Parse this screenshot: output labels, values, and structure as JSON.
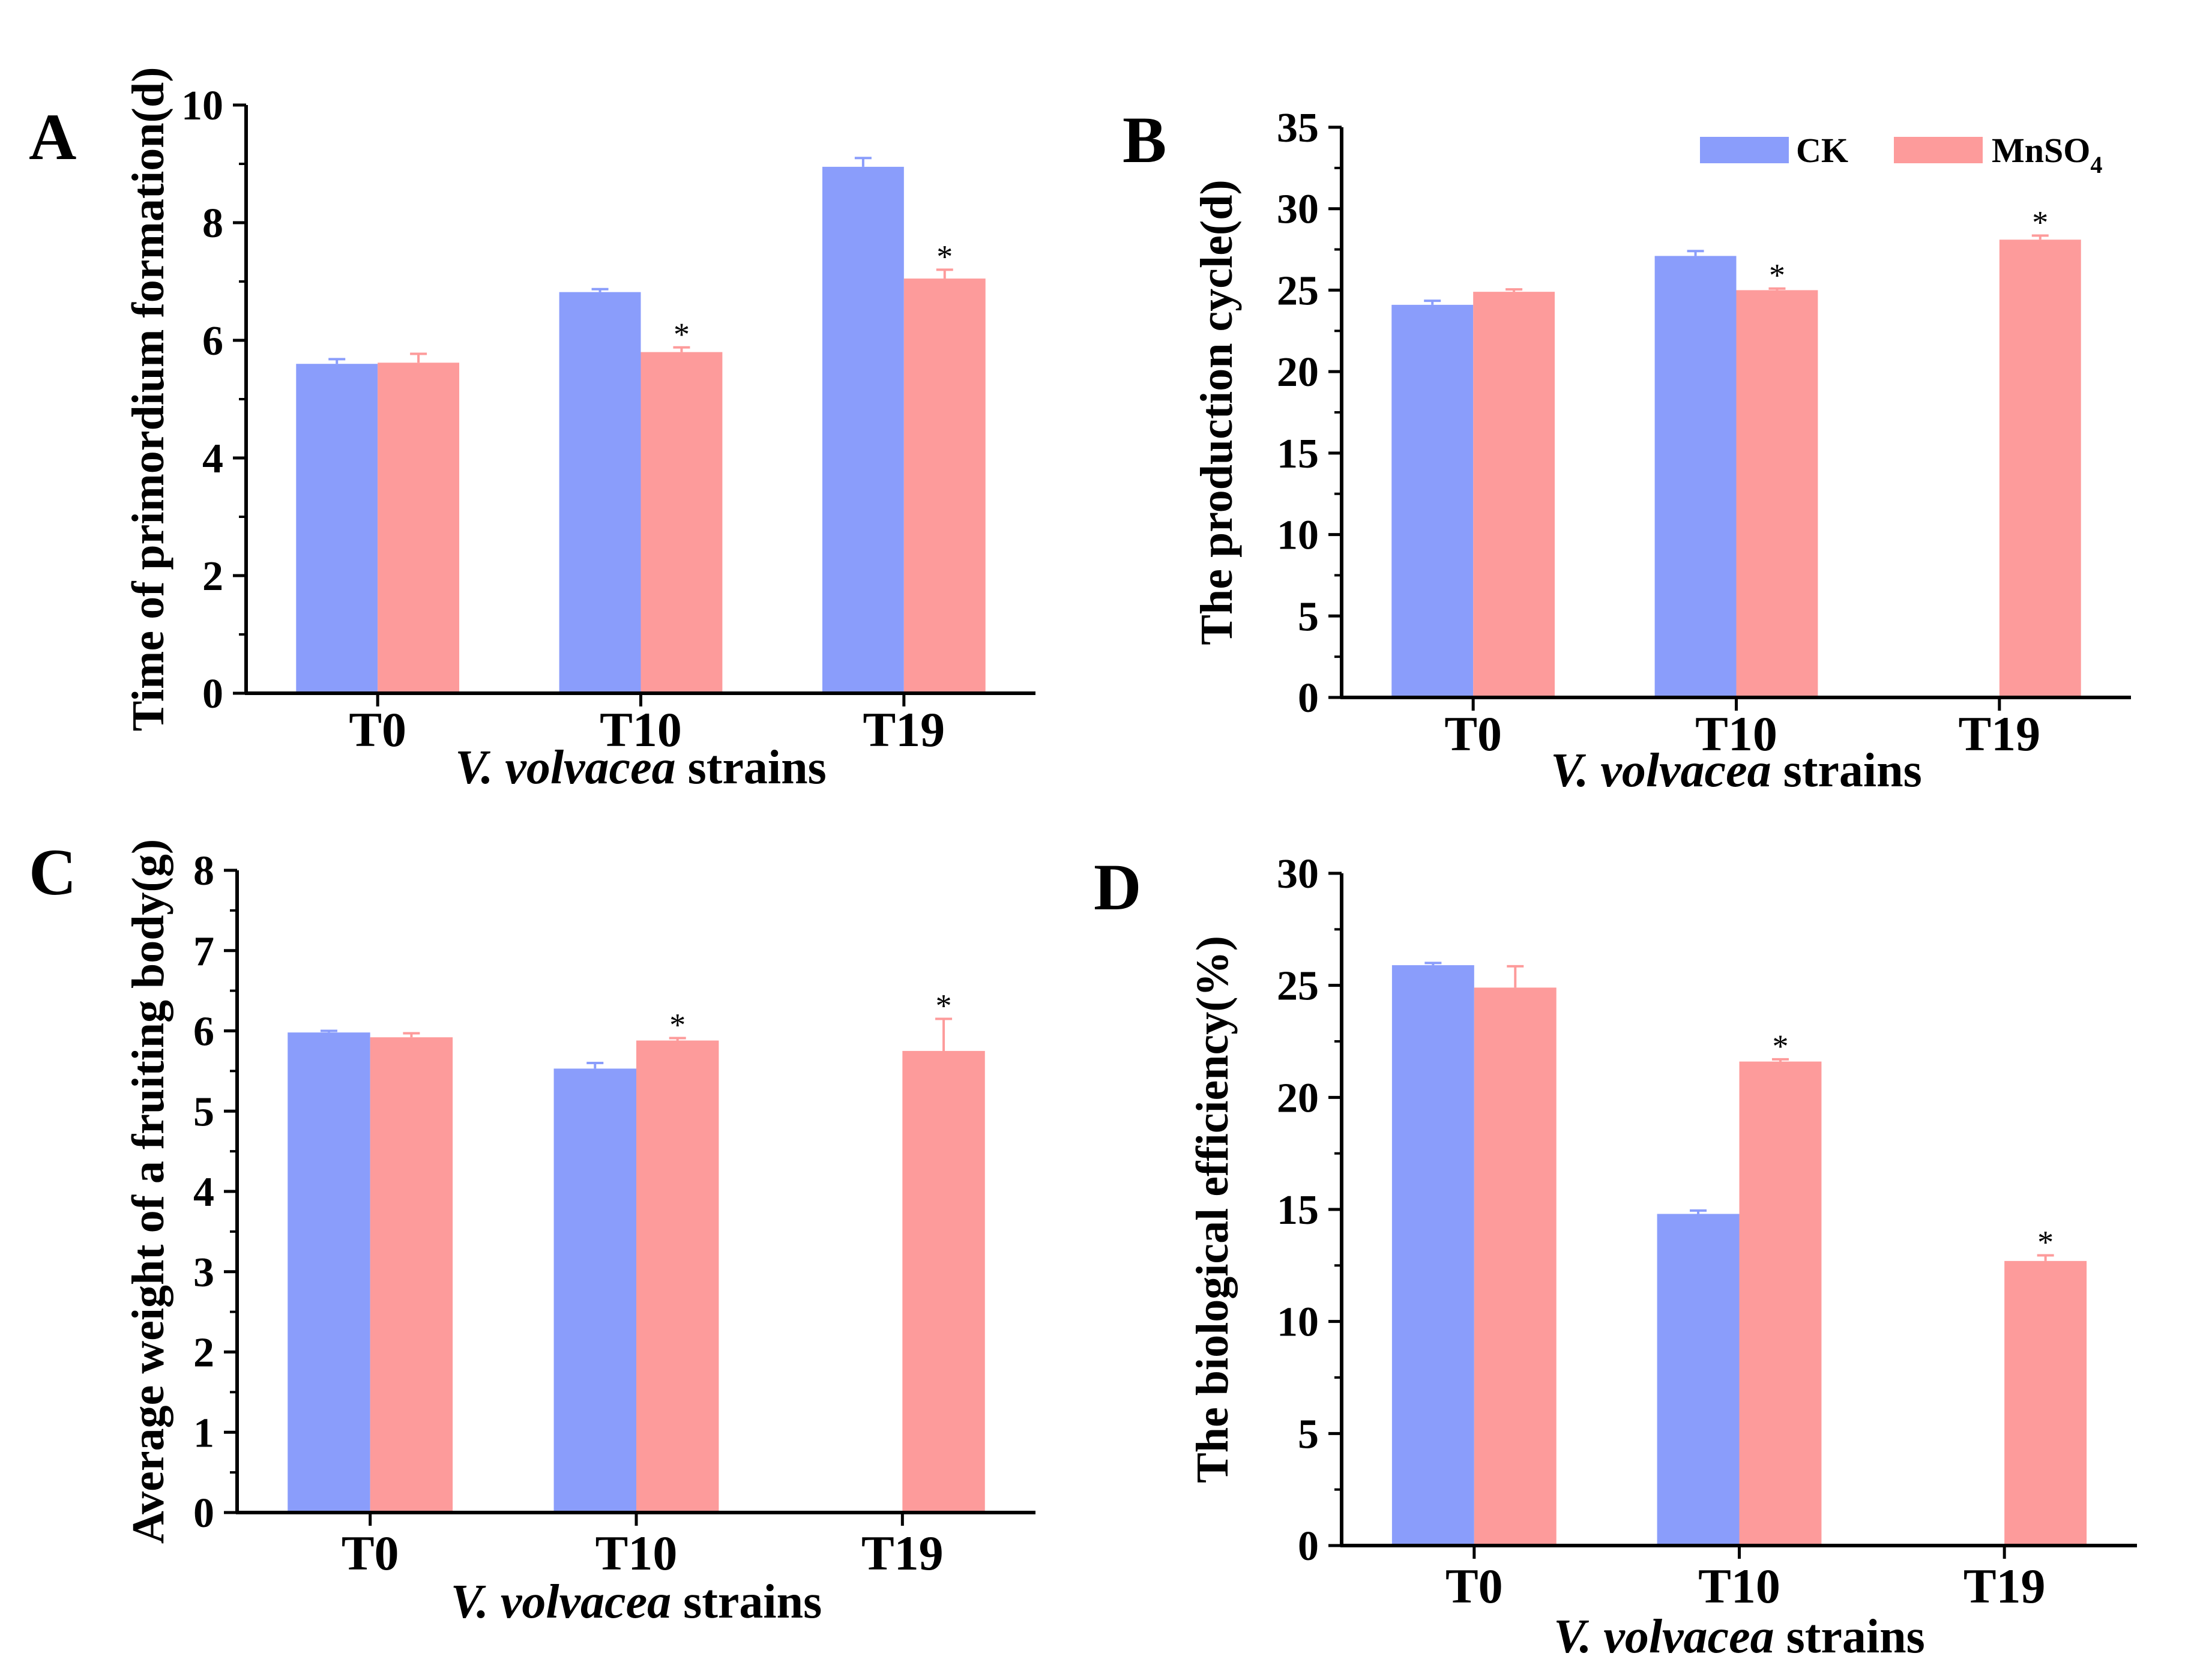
{
  "legend": {
    "items": [
      {
        "label": "CK",
        "color": "#8a9dfb"
      },
      {
        "label": "MnSO",
        "subscript": "4",
        "color": "#fd9b9b"
      }
    ]
  },
  "colors": {
    "ck": "#8a9dfb",
    "mn": "#fd9b9b",
    "axis": "#000000"
  },
  "chart_data": [
    {
      "panel": "A",
      "type": "bar",
      "ylabel": "Time of primordium formation(d)",
      "xlabel_italic": "V. volvacea",
      "xlabel_rest": " strains",
      "categories": [
        "T0",
        "T10",
        "T19"
      ],
      "ylim": [
        0,
        10
      ],
      "yticks": [
        0,
        2,
        4,
        6,
        8,
        10
      ],
      "series": [
        {
          "name": "CK",
          "values": [
            5.6,
            6.82,
            8.95
          ],
          "errors": [
            0.08,
            0.05,
            0.15
          ]
        },
        {
          "name": "MnSO4",
          "values": [
            5.62,
            5.8,
            7.05
          ],
          "errors": [
            0.15,
            0.08,
            0.15
          ]
        }
      ],
      "significance": [
        [],
        [
          "MnSO4"
        ],
        [
          "MnSO4"
        ]
      ]
    },
    {
      "panel": "B",
      "type": "bar",
      "ylabel": "The production cycle(d)",
      "xlabel_italic": "V. volvacea",
      "xlabel_rest": " strains",
      "categories": [
        "T0",
        "T10",
        "T19"
      ],
      "ylim": [
        0,
        35
      ],
      "yticks": [
        0,
        5,
        10,
        15,
        20,
        25,
        30,
        35
      ],
      "series": [
        {
          "name": "CK",
          "values": [
            24.1,
            27.1,
            null
          ],
          "errors": [
            0.25,
            0.3,
            null
          ]
        },
        {
          "name": "MnSO4",
          "values": [
            24.9,
            25.0,
            28.1
          ],
          "errors": [
            0.15,
            0.1,
            0.25
          ]
        }
      ],
      "significance": [
        [],
        [
          "MnSO4"
        ],
        [
          "MnSO4"
        ]
      ]
    },
    {
      "panel": "C",
      "type": "bar",
      "ylabel": "Average weight of a fruiting body(g)",
      "xlabel_italic": "V. volvacea",
      "xlabel_rest": " strains",
      "categories": [
        "T0",
        "T10",
        "T19"
      ],
      "ylim": [
        0,
        8
      ],
      "yticks": [
        0,
        1,
        2,
        3,
        4,
        5,
        6,
        7,
        8
      ],
      "series": [
        {
          "name": "CK",
          "values": [
            5.98,
            5.53,
            null
          ],
          "errors": [
            0.02,
            0.07,
            null
          ]
        },
        {
          "name": "MnSO4",
          "values": [
            5.92,
            5.88,
            5.75
          ],
          "errors": [
            0.05,
            0.03,
            0.4
          ]
        }
      ],
      "significance": [
        [],
        [
          "MnSO4"
        ],
        [
          "MnSO4"
        ]
      ]
    },
    {
      "panel": "D",
      "type": "bar",
      "ylabel": "The biological efficiency(%)",
      "xlabel_italic": "V. volvacea",
      "xlabel_rest": " strains",
      "categories": [
        "T0",
        "T10",
        "T19"
      ],
      "ylim": [
        0,
        30
      ],
      "yticks": [
        0,
        5,
        10,
        15,
        20,
        25,
        30
      ],
      "series": [
        {
          "name": "CK",
          "values": [
            25.9,
            14.8,
            null
          ],
          "errors": [
            0.1,
            0.15,
            null
          ]
        },
        {
          "name": "MnSO4",
          "values": [
            24.9,
            21.6,
            12.7
          ],
          "errors": [
            0.95,
            0.1,
            0.25
          ]
        }
      ],
      "significance": [
        [],
        [
          "MnSO4"
        ],
        [
          "MnSO4"
        ]
      ]
    }
  ]
}
